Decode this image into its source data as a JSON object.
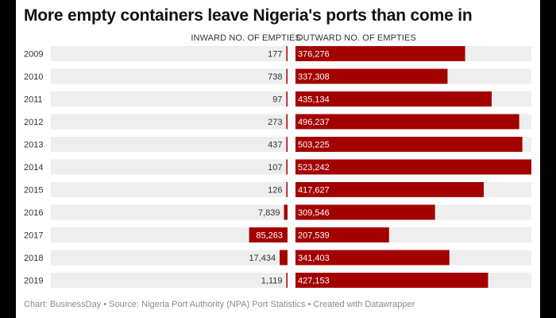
{
  "title": "More empty containers leave Nigeria's ports than come in",
  "footer": "Chart: BusinessDay • Source: Nigeria Port Authority (NPA) Port Statistics • Created with Datawrapper",
  "colors": {
    "bar": "#a30000",
    "track": "#eeeeee",
    "text": "#333333",
    "outward_label": "#ffffff"
  },
  "chart_data": {
    "type": "bar",
    "orientation": "horizontal-diverging",
    "title": "More empty containers leave Nigeria's ports than come in",
    "categories": [
      "2009",
      "2010",
      "2011",
      "2012",
      "2013",
      "2014",
      "2015",
      "2016",
      "2017",
      "2018",
      "2019"
    ],
    "series": [
      {
        "name": "INWARD NO. OF EMPTIES",
        "values": [
          177,
          738,
          97,
          273,
          437,
          107,
          126,
          7839,
          85263,
          17434,
          1119
        ],
        "labels": [
          "177",
          "738",
          "97",
          "273",
          "437",
          "107",
          "126",
          "7,839",
          "85,263",
          "17,434",
          "1,119"
        ]
      },
      {
        "name": "OUTWARD NO. OF EMPTIES",
        "values": [
          376276,
          337308,
          435134,
          496237,
          503225,
          523242,
          417627,
          309546,
          207539,
          341403,
          427153
        ],
        "labels": [
          "376,276",
          "337,308",
          "435,134",
          "496,237",
          "503,225",
          "523,242",
          "417,627",
          "309,546",
          "207,539",
          "341,403",
          "427,153"
        ]
      }
    ],
    "xlim": [
      0,
      523242
    ]
  }
}
